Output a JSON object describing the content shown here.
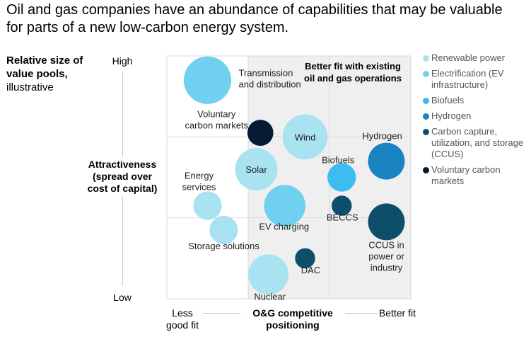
{
  "title": "Oil and gas companies have an abundance of capabilities that may be valuable for parts of a new low-carbon energy system.",
  "size_label": {
    "bold": "Relative size of value pools,",
    "normal": "illustrative"
  },
  "chart_data": {
    "type": "scatter",
    "title": "Oil and gas companies have an abundance of capabilities that may be valuable for parts of a new low-carbon energy system.",
    "xlabel": "O&G competitive positioning",
    "ylabel": "Attractiveness (spread over cost of capital)",
    "x_low_label": "Less good fit",
    "x_high_label": "Better fit",
    "y_high_label": "High",
    "y_low_label": "Low",
    "xlim": [
      0,
      3
    ],
    "ylim": [
      0,
      3
    ],
    "quadrant_note": "Better fit with existing oil and gas operations",
    "legend_position": "right",
    "grid": true,
    "categories": [
      {
        "name": "Renewable power",
        "color": "#a9e3f2"
      },
      {
        "name": "Electrification (EV infrastructure)",
        "color": "#6fd0ef"
      },
      {
        "name": "Biofuels",
        "color": "#3bbdf0"
      },
      {
        "name": "Hydrogen",
        "color": "#1a84c2"
      },
      {
        "name": "Carbon capture, utilization, and storage (CCUS)",
        "color": "#0d4e6b"
      },
      {
        "name": "Voluntary carbon markets",
        "color": "#061a33"
      }
    ],
    "points": [
      {
        "label": "Transmission and distribution",
        "category": "Electrification (EV infrastructure)",
        "x": 0.5,
        "y": 2.7,
        "size": 5
      },
      {
        "label": "Voluntary carbon markets",
        "category": "Voluntary carbon markets",
        "x": 1.15,
        "y": 2.05,
        "size": 1.5
      },
      {
        "label": "Wind",
        "category": "Renewable power",
        "x": 1.7,
        "y": 2.0,
        "size": 4.5
      },
      {
        "label": "Solar",
        "category": "Renewable power",
        "x": 1.1,
        "y": 1.6,
        "size": 4
      },
      {
        "label": "EV charging",
        "category": "Electrification (EV infrastructure)",
        "x": 1.45,
        "y": 1.15,
        "size": 3.8
      },
      {
        "label": "Energy services",
        "category": "Renewable power",
        "x": 0.5,
        "y": 1.15,
        "size": 1.8
      },
      {
        "label": "Storage solutions",
        "category": "Renewable power",
        "x": 0.7,
        "y": 0.85,
        "size": 1.8
      },
      {
        "label": "Biofuels",
        "category": "Biofuels",
        "x": 2.15,
        "y": 1.5,
        "size": 1.8
      },
      {
        "label": "BECCS",
        "category": "CCUS",
        "x": 2.15,
        "y": 1.15,
        "size": 0.9
      },
      {
        "label": "Hydrogen",
        "category": "Hydrogen",
        "x": 2.7,
        "y": 1.7,
        "size": 3
      },
      {
        "label": "CCUS in power or industry",
        "category": "CCUS",
        "x": 2.7,
        "y": 0.95,
        "size": 3
      },
      {
        "label": "DAC",
        "category": "CCUS",
        "x": 1.7,
        "y": 0.5,
        "size": 0.9
      },
      {
        "label": "Nuclear",
        "category": "Renewable power",
        "x": 1.25,
        "y": 0.3,
        "size": 3.6
      }
    ]
  }
}
